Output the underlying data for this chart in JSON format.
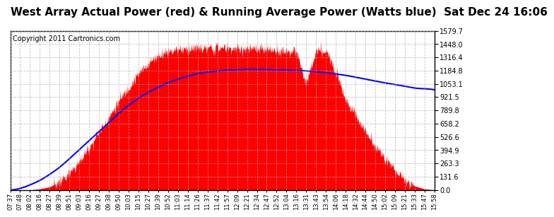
{
  "title": "West Array Actual Power (red) & Running Average Power (Watts blue)  Sat Dec 24 16:06",
  "copyright": "Copyright 2011 Cartronics.com",
  "title_fontsize": 11,
  "copyright_fontsize": 7,
  "background_color": "#ffffff",
  "plot_bg_color": "#ffffff",
  "grid_color": "#aaaaaa",
  "actual_color": "red",
  "avg_color": "blue",
  "y_max": 1579.7,
  "y_min": 0.0,
  "yticks": [
    0.0,
    131.6,
    263.3,
    394.9,
    526.6,
    658.2,
    789.8,
    921.5,
    1053.1,
    1184.8,
    1316.4,
    1448.0,
    1579.7
  ],
  "x_labels": [
    "07:37",
    "07:48",
    "08:02",
    "08:16",
    "08:27",
    "08:39",
    "08:51",
    "09:03",
    "09:16",
    "09:27",
    "09:38",
    "09:50",
    "10:03",
    "10:15",
    "10:27",
    "10:39",
    "10:52",
    "11:03",
    "11:14",
    "11:26",
    "11:37",
    "11:42",
    "11:57",
    "12:09",
    "12:21",
    "12:34",
    "12:47",
    "12:52",
    "13:04",
    "13:16",
    "13:31",
    "13:43",
    "13:54",
    "14:06",
    "14:18",
    "14:32",
    "14:44",
    "14:50",
    "15:02",
    "15:09",
    "15:21",
    "15:33",
    "15:47",
    "15:58"
  ],
  "avg_power_vals": [
    0,
    15,
    50,
    95,
    155,
    225,
    310,
    400,
    490,
    580,
    670,
    760,
    840,
    910,
    970,
    1020,
    1065,
    1100,
    1130,
    1155,
    1170,
    1182,
    1190,
    1193,
    1196,
    1196,
    1195,
    1192,
    1190,
    1188,
    1182,
    1175,
    1165,
    1152,
    1138,
    1120,
    1100,
    1082,
    1063,
    1047,
    1030,
    1012,
    1005,
    995
  ]
}
